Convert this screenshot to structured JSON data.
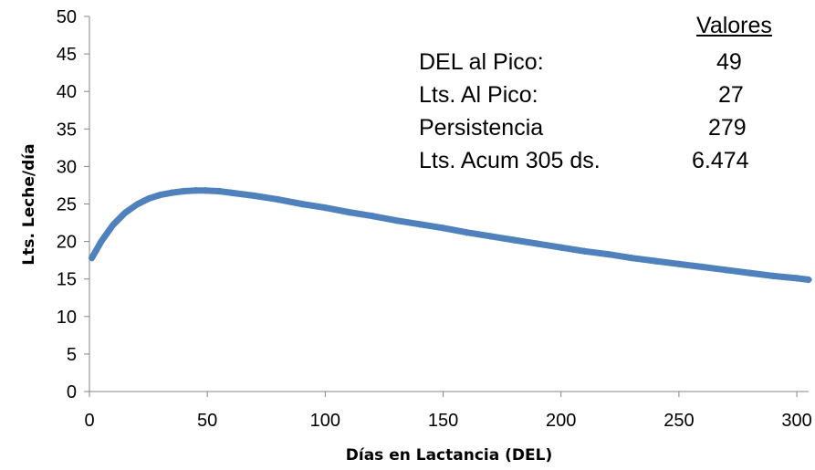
{
  "chart_data": {
    "type": "line",
    "title": "",
    "xlabel": "Días en Lactancia (DEL)",
    "ylabel": "Lts. Leche/día",
    "xlim": [
      0,
      305
    ],
    "ylim": [
      0,
      50
    ],
    "x_ticks": [
      "0",
      "50",
      "100",
      "150",
      "200",
      "250",
      "300"
    ],
    "y_ticks": [
      "0",
      "5",
      "10",
      "15",
      "20",
      "25",
      "30",
      "35",
      "40",
      "45",
      "50"
    ],
    "grid": false,
    "legend": "none",
    "series": [
      {
        "color": "#4F81BD",
        "x": [
          1,
          5,
          10,
          15,
          20,
          25,
          30,
          35,
          40,
          45,
          49,
          55,
          60,
          70,
          80,
          90,
          100,
          110,
          120,
          130,
          140,
          150,
          160,
          170,
          180,
          190,
          200,
          210,
          220,
          230,
          240,
          250,
          260,
          270,
          280,
          290,
          300,
          305
        ],
        "y": [
          17.8,
          20.0,
          22.2,
          23.8,
          24.9,
          25.7,
          26.2,
          26.5,
          26.7,
          26.8,
          26.8,
          26.7,
          26.5,
          26.1,
          25.6,
          25.0,
          24.5,
          23.9,
          23.4,
          22.8,
          22.3,
          21.8,
          21.2,
          20.7,
          20.2,
          19.7,
          19.2,
          18.7,
          18.3,
          17.8,
          17.4,
          17.0,
          16.6,
          16.2,
          15.8,
          15.4,
          15.1,
          14.9
        ]
      }
    ],
    "annotations": {
      "header": "Valores",
      "rows": [
        {
          "label": "DEL al Pico:",
          "value": "49"
        },
        {
          "label": "Lts. Al Pico:",
          "value": "27"
        },
        {
          "label": "Persistencia",
          "value": "279"
        },
        {
          "label": "Lts. Acum 305 ds.",
          "value": "6.474"
        }
      ]
    }
  }
}
